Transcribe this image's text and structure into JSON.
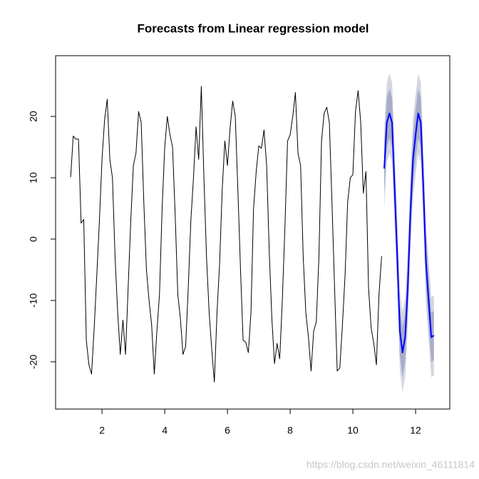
{
  "chart_data": {
    "type": "line",
    "title": "Forecasts from Linear regression model",
    "watermark": "https://blog.csdn.net/weixin_46111814",
    "xlim": [
      0.52,
      13.09
    ],
    "ylim": [
      -27.7,
      29.9
    ],
    "xticks": [
      2,
      4,
      6,
      8,
      10,
      12
    ],
    "yticks": [
      -20,
      -10,
      0,
      10,
      20
    ],
    "bands": [
      {
        "color": "#d4d6e1",
        "x": [
          11,
          11.083,
          11.167,
          11.25,
          11.333,
          11.417,
          11.5,
          11.583,
          11.667,
          11.75,
          11.833,
          11.917,
          12,
          12.083,
          12.167,
          12.25,
          12.333,
          12.417,
          12.5,
          12.583
        ],
        "lower": [
          5,
          12.5,
          14,
          12.5,
          1.5,
          -9.5,
          -21.5,
          -25,
          -22.5,
          -14.5,
          -2.5,
          6.5,
          10.5,
          14,
          12.5,
          1.5,
          -10.5,
          -16.5,
          -22.5,
          -22.2
        ],
        "upper": [
          18,
          25.5,
          27,
          25.5,
          14.5,
          3.5,
          -8.5,
          -12,
          -9.5,
          -1.5,
          10.5,
          19.5,
          23.5,
          27,
          25.5,
          14.5,
          2.5,
          -3.5,
          -9.5,
          -9.2
        ]
      },
      {
        "color": "#a7adc9",
        "x": [
          11,
          11.083,
          11.167,
          11.25,
          11.333,
          11.417,
          11.5,
          11.583,
          11.667,
          11.75,
          11.833,
          11.917,
          12,
          12.083,
          12.167,
          12.25,
          12.333,
          12.417,
          12.5,
          12.583
        ],
        "lower": [
          7.5,
          15,
          16.5,
          15,
          4,
          -7,
          -19,
          -22.5,
          -20,
          -12,
          0,
          9,
          13,
          16.5,
          15,
          4,
          -8,
          -14,
          -20,
          -19.7
        ],
        "upper": [
          15.5,
          23,
          24.5,
          23,
          12,
          1,
          -11,
          -14.5,
          -12,
          -4,
          8,
          17,
          21,
          24.5,
          23,
          12,
          0,
          -6,
          -12,
          -11.7
        ]
      }
    ],
    "series": [
      {
        "color": "#000000",
        "width": 1,
        "x": [
          1,
          1.083,
          1.167,
          1.25,
          1.333,
          1.417,
          1.5,
          1.583,
          1.667,
          1.75,
          1.833,
          1.917,
          2,
          2.083,
          2.167,
          2.25,
          2.333,
          2.417,
          2.5,
          2.583,
          2.667,
          2.75,
          2.833,
          2.917,
          3,
          3.083,
          3.167,
          3.25,
          3.333,
          3.417,
          3.5,
          3.583,
          3.667,
          3.75,
          3.833,
          3.917,
          4,
          4.083,
          4.167,
          4.25,
          4.333,
          4.417,
          4.5,
          4.583,
          4.667,
          4.75,
          4.833,
          4.917,
          5,
          5.083,
          5.167,
          5.25,
          5.333,
          5.417,
          5.5,
          5.583,
          5.667,
          5.75,
          5.833,
          5.917,
          6,
          6.083,
          6.167,
          6.25,
          6.333,
          6.417,
          6.5,
          6.583,
          6.667,
          6.75,
          6.833,
          6.917,
          7,
          7.083,
          7.167,
          7.25,
          7.333,
          7.417,
          7.5,
          7.583,
          7.667,
          7.75,
          7.833,
          7.917,
          8,
          8.083,
          8.167,
          8.25,
          8.333,
          8.417,
          8.5,
          8.583,
          8.667,
          8.75,
          8.833,
          8.917,
          9,
          9.083,
          9.167,
          9.25,
          9.333,
          9.417,
          9.5,
          9.583,
          9.667,
          9.75,
          9.833,
          9.917,
          10,
          10.083,
          10.167,
          10.25,
          10.333,
          10.417,
          10.5,
          10.583,
          10.667,
          10.75,
          10.833,
          10.917
        ],
        "values": [
          10.1,
          16.8,
          16.3,
          16.3,
          2.6,
          3.2,
          -16.5,
          -20.5,
          -22,
          -14.5,
          -6,
          3,
          13,
          19.5,
          22.8,
          13,
          10,
          -3,
          -12,
          -18.8,
          -13.2,
          -18.8,
          -8,
          3,
          12,
          14,
          20.8,
          19,
          6,
          -5,
          -10,
          -14,
          -22,
          -15,
          -9,
          5,
          15,
          20,
          17,
          15,
          4,
          -9,
          -13,
          -18.8,
          -17.5,
          -8,
          3,
          10,
          18.3,
          13,
          24.9,
          10,
          -3,
          -12,
          -18,
          -23.3,
          -12,
          -4,
          8,
          16,
          12,
          18,
          22.5,
          20,
          8,
          -5,
          -16.5,
          -16.8,
          -18.5,
          -12,
          5,
          11,
          15.2,
          14.8,
          17.8,
          12,
          -2,
          -13,
          -20.3,
          -17,
          -19.5,
          -10,
          2,
          16,
          17,
          20,
          23.9,
          14,
          12,
          -3,
          -12,
          -16,
          -21.5,
          -15,
          -13.5,
          -3,
          16,
          20.5,
          21.5,
          19,
          6,
          -8,
          -21.5,
          -21,
          -14,
          -6,
          6,
          10,
          10.5,
          20.8,
          24.2,
          19,
          7.5,
          11,
          -8,
          -14.5,
          -17,
          -20.5,
          -9,
          -2.8
        ]
      },
      {
        "color": "#0000ff",
        "width": 2,
        "x": [
          11,
          11.083,
          11.167,
          11.25,
          11.333,
          11.417,
          11.5,
          11.583,
          11.667,
          11.75,
          11.833,
          11.917,
          12,
          12.083,
          12.167,
          12.25,
          12.333,
          12.417,
          12.5,
          12.583
        ],
        "values": [
          11.5,
          19,
          20.5,
          19,
          8,
          -3,
          -15,
          -18.5,
          -16,
          -8,
          4,
          13,
          17,
          20.5,
          19,
          8,
          -4,
          -10,
          -16,
          -15.7
        ]
      }
    ]
  }
}
